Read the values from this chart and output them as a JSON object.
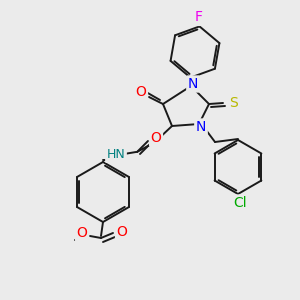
{
  "background_color": "#ebebeb",
  "bond_color": "#1a1a1a",
  "atom_colors": {
    "N": "#0000ff",
    "O": "#ff0000",
    "S": "#b8b800",
    "F": "#ee00ee",
    "Cl": "#00aa00",
    "H": "#008080",
    "C": "#1a1a1a"
  },
  "figsize": [
    3.0,
    3.0
  ],
  "dpi": 100
}
